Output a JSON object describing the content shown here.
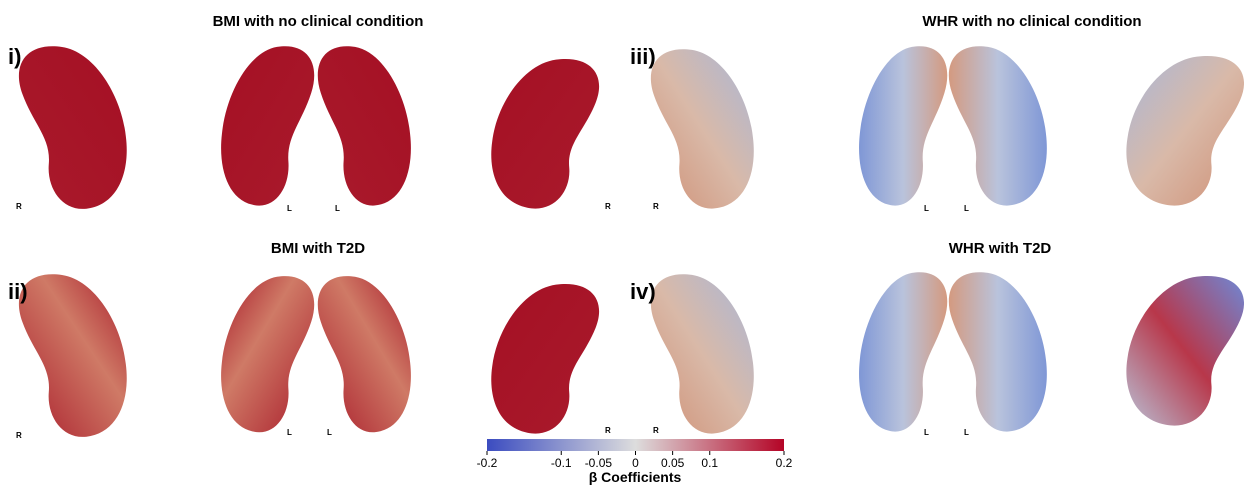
{
  "panels": [
    {
      "label": "i)",
      "title": "BMI with no clinical condition",
      "side_labels": [
        "R",
        "L",
        "L",
        "R"
      ]
    },
    {
      "label": "ii)",
      "title": "BMI with T2D",
      "side_labels": [
        "R",
        "L",
        "L",
        "R"
      ]
    },
    {
      "label": "iii)",
      "title": "WHR with no clinical condition",
      "side_labels": [
        "R",
        "L",
        "L"
      ]
    },
    {
      "label": "iv)",
      "title": "WHR with T2D",
      "side_labels": [
        "R",
        "L",
        "L"
      ]
    }
  ],
  "colorbar": {
    "label": "β Coefficients",
    "range": [
      -0.2,
      0.2
    ],
    "ticks": [
      -0.2,
      -0.1,
      -0.05,
      0,
      0.05,
      0.1,
      0.2
    ]
  }
}
